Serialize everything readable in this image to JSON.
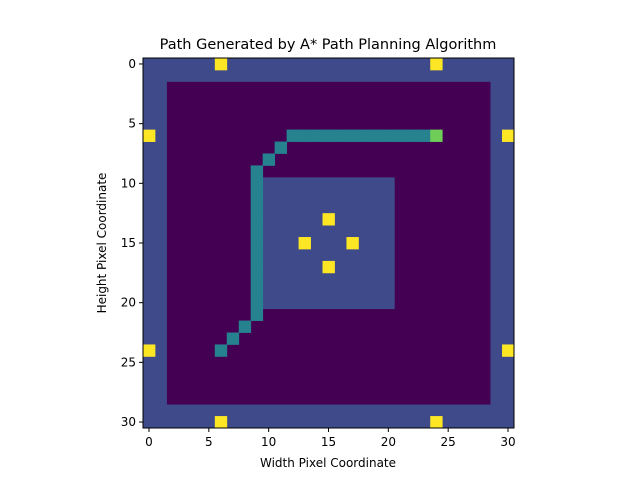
{
  "chart_data": {
    "type": "heatmap",
    "title": "Path Generated by A* Path Planning Algorithm",
    "xlabel": "Width Pixel Coordinate",
    "ylabel": "Height Pixel Coordinate",
    "xlim": [
      -0.5,
      30.5
    ],
    "ylim": [
      30.5,
      -0.5
    ],
    "xticks": [
      0,
      5,
      10,
      15,
      20,
      25,
      30
    ],
    "yticks": [
      0,
      5,
      10,
      15,
      20,
      25,
      30
    ],
    "grid": false,
    "colormap": "viridis",
    "colors": {
      "background": "#440154",
      "wall": "#3e4a89",
      "path": "#26828e",
      "goal": "#6ece58",
      "marker": "#fde725"
    },
    "grid_size": [
      31,
      31
    ],
    "regions": {
      "outer_border": {
        "x": [
          0,
          30
        ],
        "y": [
          0,
          30
        ],
        "thickness": 2
      },
      "inner_block": {
        "x": [
          10,
          20
        ],
        "y": [
          10,
          20
        ]
      }
    },
    "path": [
      [
        6,
        24
      ],
      [
        7,
        23
      ],
      [
        8,
        22
      ],
      [
        9,
        21
      ],
      [
        9,
        20
      ],
      [
        9,
        19
      ],
      [
        9,
        18
      ],
      [
        9,
        17
      ],
      [
        9,
        16
      ],
      [
        9,
        15
      ],
      [
        9,
        14
      ],
      [
        9,
        13
      ],
      [
        9,
        12
      ],
      [
        9,
        11
      ],
      [
        9,
        10
      ],
      [
        9,
        9
      ],
      [
        10,
        8
      ],
      [
        11,
        7
      ],
      [
        12,
        6
      ],
      [
        13,
        6
      ],
      [
        14,
        6
      ],
      [
        15,
        6
      ],
      [
        16,
        6
      ],
      [
        17,
        6
      ],
      [
        18,
        6
      ],
      [
        19,
        6
      ],
      [
        20,
        6
      ],
      [
        21,
        6
      ],
      [
        22,
        6
      ],
      [
        23,
        6
      ]
    ],
    "goal": [
      [
        24,
        6
      ]
    ],
    "markers": [
      [
        6,
        0
      ],
      [
        24,
        0
      ],
      [
        0,
        6
      ],
      [
        30,
        6
      ],
      [
        0,
        24
      ],
      [
        30,
        24
      ],
      [
        6,
        30
      ],
      [
        24,
        30
      ],
      [
        15,
        13
      ],
      [
        13,
        15
      ],
      [
        17,
        15
      ],
      [
        15,
        17
      ]
    ]
  }
}
